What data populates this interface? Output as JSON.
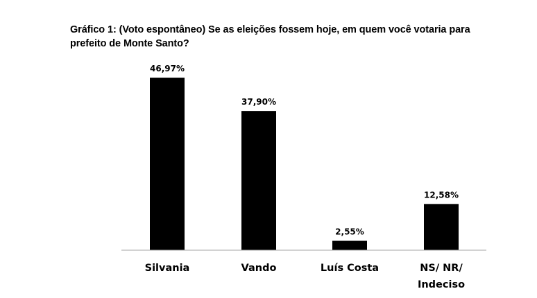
{
  "chart_data": {
    "type": "bar",
    "title": "Gráfico 1: (Voto espontâneo) Se as eleições fossem hoje, em quem você votaria para\nprefeito de Monte Santo?",
    "categories": [
      [
        "Silvania"
      ],
      [
        "Vando"
      ],
      [
        "Luís Costa"
      ],
      [
        "NS/ NR/",
        "Indeciso"
      ]
    ],
    "values": [
      46.97,
      37.9,
      2.55,
      12.58
    ],
    "data_labels": [
      "46,97%",
      "37,90%",
      "2,55%",
      "12,58%"
    ],
    "ylim": [
      0,
      50
    ],
    "grid": false,
    "legend": "none",
    "bar_color": "#000000",
    "axis_color": "#a6a6a6"
  }
}
